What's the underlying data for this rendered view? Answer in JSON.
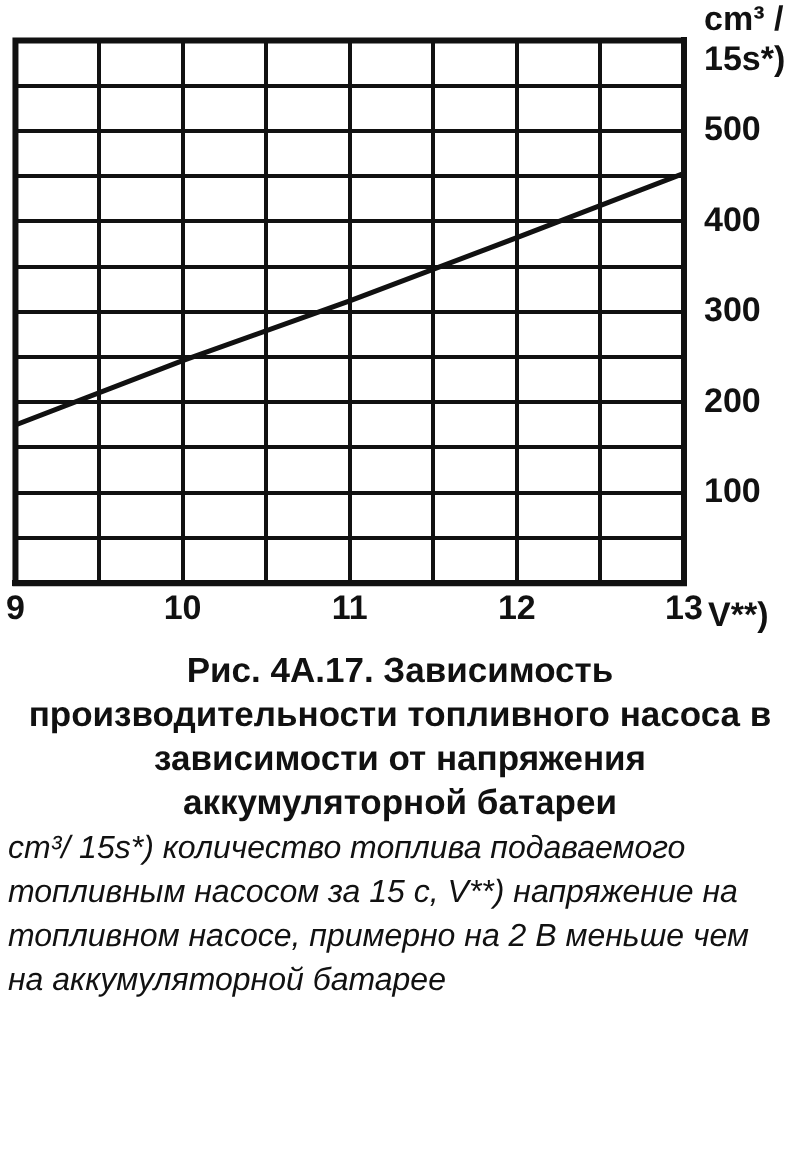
{
  "chart_data": {
    "type": "line",
    "title": "Рис. 4A.17. Зависимость производительности топливного насоса в зависимости от напряжения аккумуляторной батареи",
    "xlabel": "V**)",
    "ylabel": "cm³ / 15s*)",
    "annotations": [
      "cm³/ 15s*) количество топлива подаваемого топливным насосом за 15 с, V**) напряжение на топливном насосе, примерно на 2 В меньше чем на аккумуляторной батарее"
    ],
    "x": [
      9,
      10,
      11,
      12,
      13
    ],
    "series": [
      {
        "color": "#111111",
        "values": [
          175,
          246,
          312,
          382,
          453
        ]
      }
    ],
    "xlim": [
      9,
      13
    ],
    "xticks": [
      9,
      {
        "value": 9.5,
        "label": null
      },
      10,
      {
        "value": 10.5,
        "label": null
      },
      11,
      {
        "value": 11.5,
        "label": null
      },
      12,
      {
        "value": 12.5,
        "label": null
      },
      13
    ],
    "ylim": [
      0,
      600
    ],
    "yticks": [
      {
        "value": 0,
        "label": null
      },
      {
        "value": 50,
        "label": null
      },
      100,
      {
        "value": 150,
        "label": null
      },
      200,
      {
        "value": 250,
        "label": null
      },
      300,
      {
        "value": 350,
        "label": null
      },
      400,
      {
        "value": 450,
        "label": null
      },
      500,
      {
        "value": 550,
        "label": null
      },
      {
        "value": 600,
        "label": null
      }
    ],
    "grid": true,
    "legend": false,
    "marker": "none",
    "line_style": "solid"
  }
}
